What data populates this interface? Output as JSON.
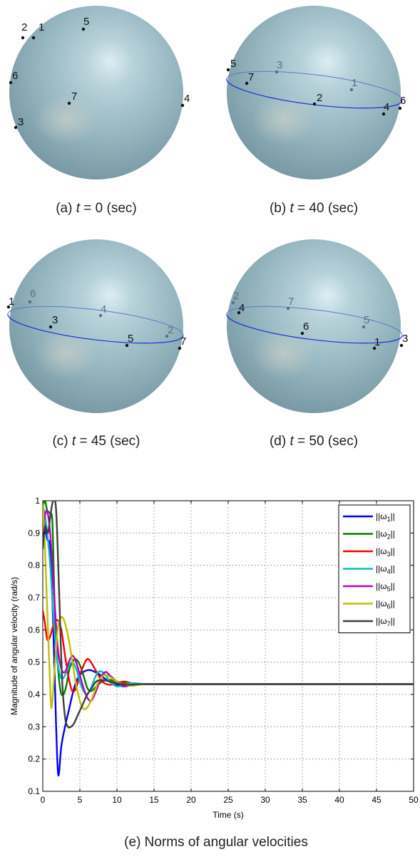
{
  "panels": [
    {
      "caption_prefix": "(a)",
      "caption_var": "t",
      "caption_rest": " = 0 (sec)",
      "points": [
        {
          "label": "1",
          "pos": "far"
        },
        {
          "label": "2",
          "pos": "far"
        },
        {
          "label": "3",
          "pos": "far"
        },
        {
          "label": "4",
          "pos": "far"
        },
        {
          "label": "5",
          "pos": "far"
        },
        {
          "label": "6",
          "pos": "far"
        },
        {
          "label": "7",
          "pos": "far"
        }
      ]
    },
    {
      "caption_prefix": "(b)",
      "caption_var": "t",
      "caption_rest": " = 40 (sec)",
      "points": [
        {
          "label": "1",
          "pos": "back"
        },
        {
          "label": "2",
          "pos": "front"
        },
        {
          "label": "3",
          "pos": "back"
        },
        {
          "label": "4",
          "pos": "front"
        },
        {
          "label": "5",
          "pos": "front"
        },
        {
          "label": "6",
          "pos": "front"
        },
        {
          "label": "7",
          "pos": "front"
        }
      ]
    },
    {
      "caption_prefix": "(c)",
      "caption_var": "t",
      "caption_rest": " = 45 (sec)",
      "points": [
        {
          "label": "1",
          "pos": "front"
        },
        {
          "label": "2",
          "pos": "back"
        },
        {
          "label": "3",
          "pos": "front"
        },
        {
          "label": "4",
          "pos": "back"
        },
        {
          "label": "5",
          "pos": "front"
        },
        {
          "label": "6",
          "pos": "back"
        },
        {
          "label": "7",
          "pos": "front"
        }
      ]
    },
    {
      "caption_prefix": "(d)",
      "caption_var": "t",
      "caption_rest": " = 50 (sec)",
      "points": [
        {
          "label": "1",
          "pos": "front"
        },
        {
          "label": "2",
          "pos": "back"
        },
        {
          "label": "3",
          "pos": "front"
        },
        {
          "label": "4",
          "pos": "front"
        },
        {
          "label": "5",
          "pos": "back"
        },
        {
          "label": "6",
          "pos": "front"
        },
        {
          "label": "7",
          "pos": "back"
        }
      ]
    }
  ],
  "chart_caption": "(e) Norms of angular velocities",
  "chart_data": {
    "type": "line",
    "xlabel": "Time (s)",
    "ylabel": "Magnitude of angular velocity (rad/s)",
    "xlim": [
      0,
      50
    ],
    "ylim": [
      0.1,
      1
    ],
    "xticks": [
      0,
      5,
      10,
      15,
      20,
      25,
      30,
      35,
      40,
      45,
      50
    ],
    "yticks": [
      0.1,
      0.2,
      0.3,
      0.4,
      0.5,
      0.6,
      0.7,
      0.8,
      0.9,
      1
    ],
    "xtick_labels": [
      "0",
      "5",
      "10",
      "15",
      "20",
      "25",
      "30",
      "35",
      "40",
      "45",
      "50"
    ],
    "ytick_labels": [
      "0.1",
      "0.2",
      "0.3",
      "0.4",
      "0.5",
      "0.6",
      "0.7",
      "0.8",
      "0.9",
      "1"
    ],
    "grid": true,
    "legend": "top-right",
    "series": [
      {
        "name": "||ω1||",
        "legend_base": "||ω",
        "legend_sub": "1",
        "legend_end": "||",
        "color": "#0000ff",
        "x": [
          0,
          0.3,
          0.6,
          1,
          1.4,
          1.8,
          2.1,
          2.5,
          3,
          3.5,
          4,
          4.5,
          5,
          5.5,
          6,
          6.5,
          7,
          7.5,
          8,
          9,
          10,
          11,
          12,
          14,
          16,
          20,
          50
        ],
        "y": [
          0.97,
          0.92,
          0.88,
          0.85,
          0.62,
          0.3,
          0.15,
          0.24,
          0.3,
          0.35,
          0.4,
          0.44,
          0.46,
          0.47,
          0.475,
          0.475,
          0.47,
          0.465,
          0.455,
          0.44,
          0.43,
          0.425,
          0.43,
          0.432,
          0.432,
          0.432,
          0.432
        ]
      },
      {
        "name": "||ω2||",
        "legend_base": "||ω",
        "legend_sub": "2",
        "legend_end": "||",
        "color": "#007f00",
        "x": [
          0,
          0.3,
          0.6,
          1,
          1.3,
          1.6,
          2,
          2.4,
          2.8,
          3.2,
          3.6,
          4,
          4.4,
          4.8,
          5.2,
          5.6,
          6,
          6.5,
          7,
          8,
          9,
          10,
          11,
          12,
          14,
          16,
          20,
          50
        ],
        "y": [
          0.98,
          1,
          0.97,
          0.96,
          0.93,
          0.68,
          0.5,
          0.41,
          0.4,
          0.43,
          0.48,
          0.5,
          0.51,
          0.5,
          0.48,
          0.45,
          0.42,
          0.41,
          0.42,
          0.44,
          0.445,
          0.44,
          0.435,
          0.43,
          0.432,
          0.432,
          0.432,
          0.432
        ]
      },
      {
        "name": "||ω3||",
        "legend_base": "||ω",
        "legend_sub": "3",
        "legend_end": "||",
        "color": "#ff0000",
        "x": [
          0,
          0.3,
          0.6,
          1,
          1.5,
          2,
          2.5,
          3,
          3.5,
          4,
          4.5,
          5,
          5.5,
          6,
          6.5,
          7,
          7.5,
          8,
          9,
          10,
          11,
          12,
          14,
          16,
          20,
          50
        ],
        "y": [
          0.66,
          0.62,
          0.57,
          0.58,
          0.62,
          0.63,
          0.6,
          0.52,
          0.45,
          0.41,
          0.42,
          0.46,
          0.49,
          0.51,
          0.5,
          0.48,
          0.46,
          0.44,
          0.43,
          0.435,
          0.44,
          0.435,
          0.432,
          0.432,
          0.432,
          0.432
        ]
      },
      {
        "name": "||ω4||",
        "legend_base": "||ω",
        "legend_sub": "4",
        "legend_end": "||",
        "color": "#00bfbf",
        "x": [
          0,
          0.5,
          1,
          1.5,
          2,
          2.5,
          3,
          3.5,
          4,
          4.5,
          5,
          5.5,
          6,
          6.5,
          7,
          7.5,
          8,
          8.5,
          9,
          10,
          11,
          12,
          14,
          16,
          20,
          50
        ],
        "y": [
          0.99,
          0.92,
          0.8,
          0.62,
          0.5,
          0.45,
          0.46,
          0.49,
          0.5,
          0.48,
          0.44,
          0.41,
          0.4,
          0.42,
          0.45,
          0.47,
          0.47,
          0.46,
          0.44,
          0.425,
          0.43,
          0.435,
          0.432,
          0.432,
          0.432,
          0.432
        ]
      },
      {
        "name": "||ω5||",
        "legend_base": "||ω",
        "legend_sub": "5",
        "legend_end": "||",
        "color": "#bf00bf",
        "x": [
          0,
          0.5,
          1,
          1.5,
          2,
          2.5,
          3,
          3.5,
          4,
          4.5,
          5,
          5.5,
          6,
          6.5,
          7,
          7.5,
          8,
          8.5,
          9,
          10,
          11,
          12,
          14,
          16,
          20,
          50
        ],
        "y": [
          0.9,
          0.97,
          0.9,
          0.72,
          0.55,
          0.48,
          0.47,
          0.5,
          0.52,
          0.5,
          0.46,
          0.42,
          0.39,
          0.38,
          0.4,
          0.43,
          0.46,
          0.47,
          0.46,
          0.44,
          0.425,
          0.43,
          0.432,
          0.432,
          0.432,
          0.432
        ]
      },
      {
        "name": "||ω6||",
        "legend_base": "||ω",
        "legend_sub": "6",
        "legend_end": "||",
        "color": "#bfbf00",
        "x": [
          0,
          0.3,
          0.7,
          1,
          1.2,
          1.6,
          2,
          2.5,
          3,
          3.5,
          4,
          4.5,
          5,
          5.5,
          6,
          6.5,
          7,
          7.5,
          8,
          8.5,
          9,
          10,
          11,
          12,
          13,
          14,
          16,
          20,
          50
        ],
        "y": [
          1,
          0.85,
          0.6,
          0.42,
          0.36,
          0.48,
          0.6,
          0.64,
          0.62,
          0.57,
          0.5,
          0.43,
          0.38,
          0.355,
          0.36,
          0.38,
          0.41,
          0.44,
          0.455,
          0.46,
          0.455,
          0.44,
          0.43,
          0.427,
          0.43,
          0.432,
          0.432,
          0.432,
          0.432
        ]
      },
      {
        "name": "||ω7||",
        "legend_base": "||ω",
        "legend_sub": "7",
        "legend_end": "||",
        "color": "#3f3f3f",
        "x": [
          0,
          0.3,
          0.7,
          1,
          1.4,
          1.8,
          2.2,
          2.6,
          3,
          3.4,
          3.8,
          4.2,
          4.8,
          5.4,
          6,
          6.6,
          7.2,
          8,
          9,
          10,
          11,
          12,
          13,
          14,
          16,
          20,
          50
        ],
        "y": [
          0.85,
          0.92,
          0.9,
          0.95,
          1,
          0.97,
          0.72,
          0.45,
          0.33,
          0.3,
          0.3,
          0.31,
          0.34,
          0.37,
          0.4,
          0.42,
          0.44,
          0.445,
          0.44,
          0.435,
          0.43,
          0.43,
          0.432,
          0.432,
          0.432,
          0.432,
          0.432
        ]
      }
    ]
  }
}
